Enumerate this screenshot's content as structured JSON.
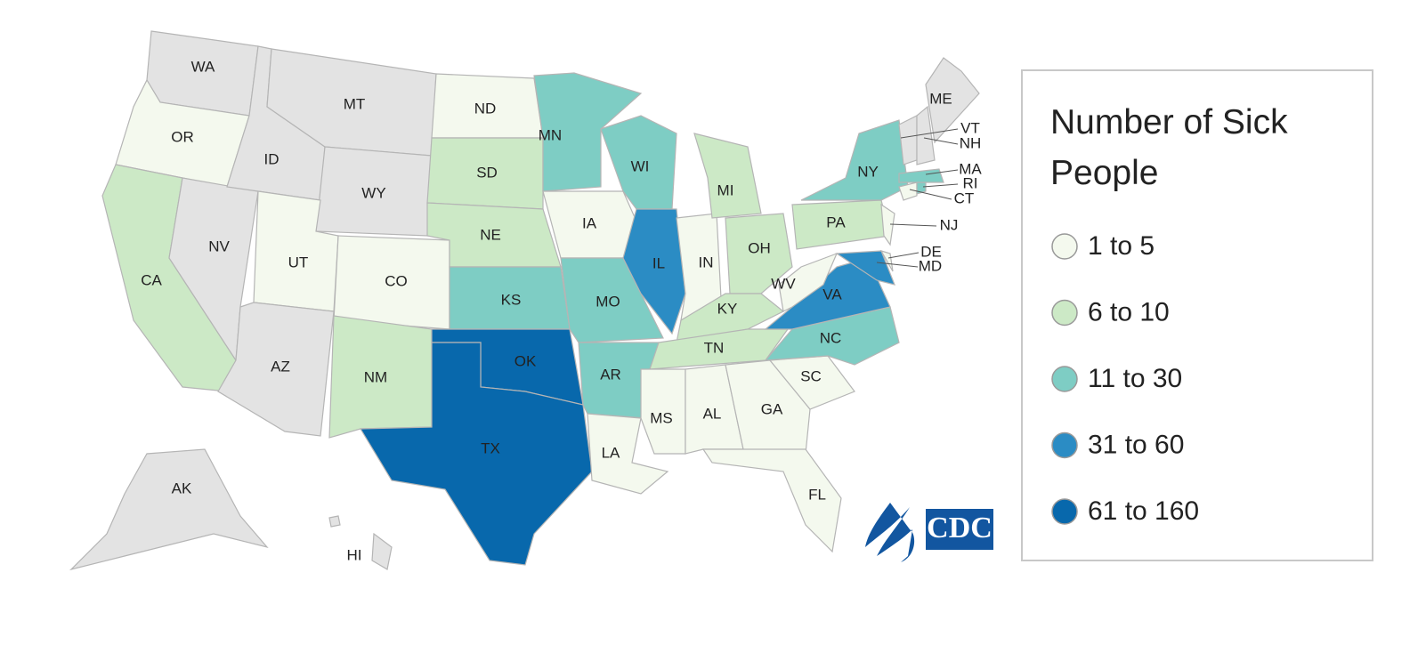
{
  "legend": {
    "title": "Number of Sick People",
    "items": [
      {
        "label": "1 to 5",
        "color": "#f4f9ee"
      },
      {
        "label": "6 to 10",
        "color": "#cce9c6"
      },
      {
        "label": "11 to 30",
        "color": "#7ecdc4"
      },
      {
        "label": "31 to 60",
        "color": "#2b8cc4"
      },
      {
        "label": "61 to 160",
        "color": "#0868ac"
      }
    ]
  },
  "states": [
    {
      "label": "WA",
      "color": "#e3e3e3"
    },
    {
      "label": "OR",
      "color": "#f4f9ee"
    },
    {
      "label": "CA",
      "color": "#cce9c6"
    },
    {
      "label": "NV",
      "color": "#e3e3e3"
    },
    {
      "label": "ID",
      "color": "#e3e3e3"
    },
    {
      "label": "MT",
      "color": "#e3e3e3"
    },
    {
      "label": "WY",
      "color": "#e3e3e3"
    },
    {
      "label": "UT",
      "color": "#f4f9ee"
    },
    {
      "label": "CO",
      "color": "#f4f9ee"
    },
    {
      "label": "AZ",
      "color": "#e3e3e3"
    },
    {
      "label": "NM",
      "color": "#cce9c6"
    },
    {
      "label": "ND",
      "color": "#f4f9ee"
    },
    {
      "label": "SD",
      "color": "#cce9c6"
    },
    {
      "label": "NE",
      "color": "#cce9c6"
    },
    {
      "label": "KS",
      "color": "#7ecdc4"
    },
    {
      "label": "OK",
      "color": "#0868ac"
    },
    {
      "label": "TX",
      "color": "#0868ac"
    },
    {
      "label": "MN",
      "color": "#7ecdc4"
    },
    {
      "label": "IA",
      "color": "#f4f9ee"
    },
    {
      "label": "MO",
      "color": "#7ecdc4"
    },
    {
      "label": "AR",
      "color": "#7ecdc4"
    },
    {
      "label": "LA",
      "color": "#f4f9ee"
    },
    {
      "label": "WI",
      "color": "#7ecdc4"
    },
    {
      "label": "IL",
      "color": "#2b8cc4"
    },
    {
      "label": "IN",
      "color": "#f4f9ee"
    },
    {
      "label": "MI",
      "color": "#cce9c6"
    },
    {
      "label": "OH",
      "color": "#cce9c6"
    },
    {
      "label": "KY",
      "color": "#cce9c6"
    },
    {
      "label": "TN",
      "color": "#cce9c6"
    },
    {
      "label": "MS",
      "color": "#f4f9ee"
    },
    {
      "label": "AL",
      "color": "#f4f9ee"
    },
    {
      "label": "GA",
      "color": "#f4f9ee"
    },
    {
      "label": "FL",
      "color": "#f4f9ee"
    },
    {
      "label": "SC",
      "color": "#f4f9ee"
    },
    {
      "label": "NC",
      "color": "#7ecdc4"
    },
    {
      "label": "VA",
      "color": "#2b8cc4"
    },
    {
      "label": "WV",
      "color": "#f4f9ee"
    },
    {
      "label": "PA",
      "color": "#cce9c6"
    },
    {
      "label": "NY",
      "color": "#7ecdc4"
    },
    {
      "label": "MD",
      "color": "#2b8cc4"
    },
    {
      "label": "DE",
      "color": "#f4f9ee"
    },
    {
      "label": "NJ",
      "color": "#f4f9ee"
    },
    {
      "label": "CT",
      "color": "#f4f9ee"
    },
    {
      "label": "RI",
      "color": "#7ecdc4"
    },
    {
      "label": "MA",
      "color": "#7ecdc4"
    },
    {
      "label": "VT",
      "color": "#e3e3e3"
    },
    {
      "label": "NH",
      "color": "#e3e3e3"
    },
    {
      "label": "ME",
      "color": "#e3e3e3"
    },
    {
      "label": "AK",
      "color": "#e3e3e3"
    },
    {
      "label": "HI",
      "color": "#e3e3e3"
    }
  ],
  "logo": "CDC"
}
